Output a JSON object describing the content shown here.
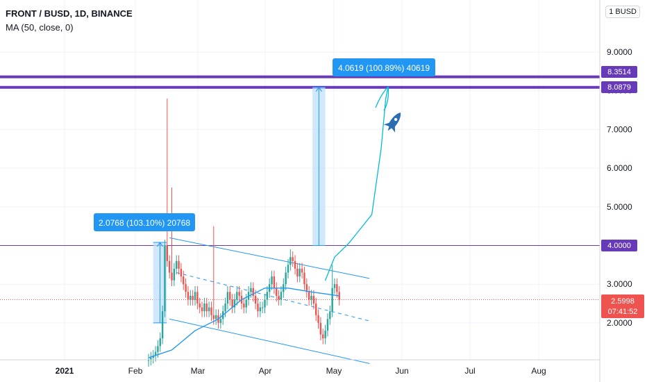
{
  "header": {
    "title": "FRONT / BUSD, 1D, BINANCE",
    "indicator": "MA (50, close, 0)",
    "currency": "1 BUSD"
  },
  "price_tags": {
    "r1": "8.3514",
    "r2": "8.0879",
    "support": "4.0000",
    "last": "2.5998",
    "countdown": "07:41:52"
  },
  "measures": [
    {
      "label": "2.0768 (103.10%) 20768"
    },
    {
      "label": "4.0619 (100.89%) 40619"
    }
  ],
  "colors": {
    "up": "#26a69a",
    "down": "#ef5350",
    "line": "#2196f3",
    "purple": "#673ab7",
    "measure_fill": "#bbdefb",
    "grid": "#f0f3fa"
  },
  "chart_data": {
    "type": "candlestick",
    "title": "FRONT / BUSD, 1D, BINANCE",
    "x_ticks": [
      "2021",
      "Feb",
      "Mar",
      "Apr",
      "May",
      "Jun",
      "Jul",
      "Aug"
    ],
    "y_ticks": [
      "2.0000",
      "3.0000",
      "4.0000",
      "5.0000",
      "6.0000",
      "7.0000",
      "8.0000",
      "9.0000"
    ],
    "ylim": [
      1.0,
      10.0
    ],
    "closes": [
      1.05,
      1.1,
      1.15,
      1.25,
      1.4,
      1.6,
      2.3,
      4.0,
      3.6,
      3.3,
      3.1,
      3.4,
      3.6,
      3.4,
      3.2,
      3.0,
      2.8,
      2.6,
      2.7,
      2.6,
      2.8,
      2.5,
      2.4,
      2.3,
      2.5,
      2.3,
      2.4,
      2.2,
      2.1,
      2.2,
      2.0,
      2.1,
      2.3,
      2.5,
      2.8,
      2.6,
      2.4,
      2.6,
      2.8,
      2.7,
      2.5,
      2.4,
      2.6,
      2.8,
      2.9,
      2.7,
      2.5,
      2.3,
      2.4,
      2.4,
      2.6,
      2.8,
      3.0,
      3.2,
      2.9,
      2.7,
      2.6,
      2.8,
      3.0,
      3.3,
      3.5,
      3.7,
      3.6,
      3.4,
      3.2,
      3.4,
      3.3,
      3.0,
      2.8,
      2.6,
      2.7,
      2.5,
      2.2,
      2.0,
      1.7,
      1.6,
      1.8,
      2.1,
      2.3,
      2.9,
      3.0,
      2.8,
      2.6
    ],
    "spikes": [
      {
        "index": 8,
        "high": 7.8
      },
      {
        "index": 10,
        "high": 5.5
      },
      {
        "index": 28,
        "high": 4.5
      },
      {
        "index": 61,
        "high": 3.9
      },
      {
        "index": 79,
        "high": 3.5
      }
    ],
    "ma_points": [
      [
        0,
        1.1
      ],
      [
        10,
        1.3
      ],
      [
        20,
        1.8
      ],
      [
        30,
        2.1
      ],
      [
        40,
        2.6
      ],
      [
        50,
        2.9
      ],
      [
        60,
        2.9
      ],
      [
        70,
        2.8
      ],
      [
        82,
        2.7
      ]
    ],
    "channel": {
      "upper": [
        [
          9,
          4.2
        ],
        [
          95,
          3.15
        ]
      ],
      "lower": [
        [
          9,
          2.1
        ],
        [
          95,
          0.95
        ]
      ],
      "mid": [
        [
          12,
          3.3
        ],
        [
          95,
          2.05
        ]
      ]
    },
    "last_price": 2.5998,
    "horizontal_levels": [
      8.3514,
      8.0879,
      4.0
    ],
    "measures": [
      {
        "from": 2.0,
        "to": 4.08,
        "x0": 2.0,
        "x1": 7.8
      },
      {
        "from": 4.0,
        "to": 8.09,
        "x0": 70.5,
        "x1": 76.0
      }
    ],
    "projection": [
      [
        76.0,
        3.1
      ],
      [
        80.0,
        3.7
      ],
      [
        86.0,
        4.05
      ],
      [
        96.0,
        4.8
      ],
      [
        100.0,
        6.5
      ],
      [
        102.0,
        7.8
      ],
      [
        103.0,
        8.1
      ]
    ],
    "rocket_note": {
      "x": 108,
      "y": 7.2
    }
  }
}
